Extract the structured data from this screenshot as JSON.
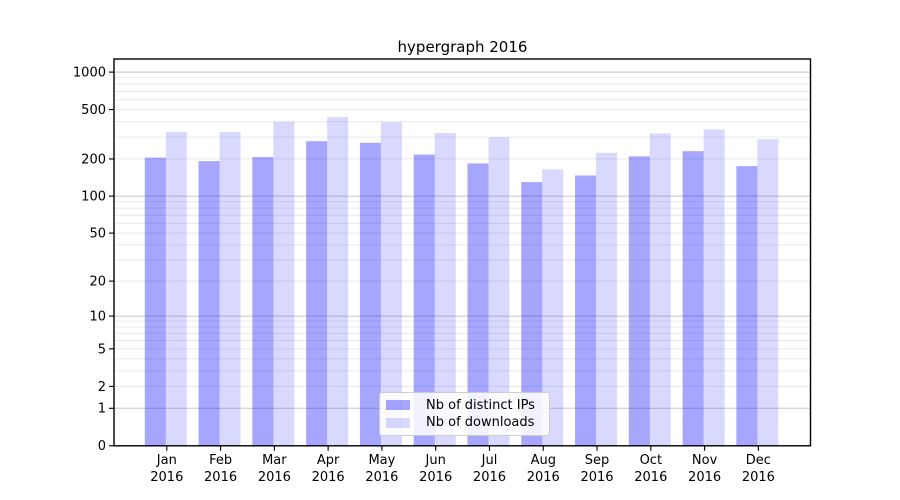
{
  "chart_data": {
    "type": "bar",
    "title": "hypergraph 2016",
    "categories": [
      "Jan 2016",
      "Feb 2016",
      "Mar 2016",
      "Apr 2016",
      "May 2016",
      "Jun 2016",
      "Jul 2016",
      "Aug 2016",
      "Sep 2016",
      "Oct 2016",
      "Nov 2016",
      "Dec 2016"
    ],
    "series": [
      {
        "name": "Nb of distinct IPs",
        "color": "#0000ff",
        "alpha": 0.35,
        "values": [
          205,
          192,
          207,
          278,
          270,
          217,
          184,
          130,
          147,
          210,
          231,
          175
        ]
      },
      {
        "name": "Nb of downloads",
        "color": "#0000ff",
        "alpha": 0.15,
        "values": [
          331,
          330,
          398,
          435,
          396,
          324,
          300,
          165,
          224,
          321,
          346,
          288
        ]
      }
    ],
    "yscale": "log1p",
    "y_ticks": [
      1000,
      500,
      200,
      100,
      50,
      20,
      10,
      5,
      2,
      1,
      0
    ],
    "ylim": [
      0,
      1280
    ],
    "xlabel": "",
    "ylabel": "",
    "grid": {
      "show": true,
      "major_color": "#c8c8c8",
      "minor_color": "#eaeaea"
    },
    "legend": {
      "position": "lower-center",
      "frame_color": "#cccccc"
    }
  }
}
